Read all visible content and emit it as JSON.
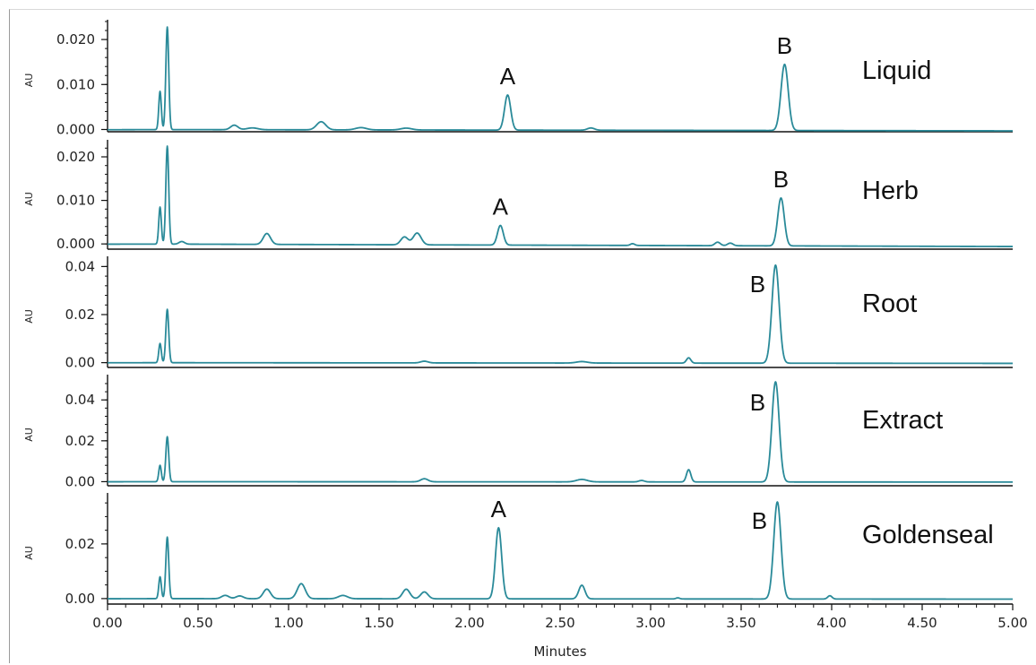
{
  "chart_data": {
    "type": "line",
    "x_axis": {
      "label": "Minutes",
      "range": [
        0,
        5
      ],
      "ticks": [
        "0.00",
        "0.50",
        "1.00",
        "1.50",
        "2.00",
        "2.50",
        "3.00",
        "3.50",
        "4.00",
        "4.50",
        "5.00"
      ]
    },
    "line_color": "#2a8a99",
    "panels": [
      {
        "name": "Liquid",
        "ylabel": "AU",
        "ylim": [
          -0.0005,
          0.024
        ],
        "yticks": [
          0.0,
          0.01,
          0.02
        ],
        "ytick_labels": [
          "0.000",
          "0.010",
          "0.020"
        ],
        "baseline": {
          "start": 0.0,
          "end": -0.0003
        },
        "peaks": [
          {
            "x": 0.29,
            "height": 0.0085,
            "width": 0.007
          },
          {
            "x": 0.33,
            "height": 0.0228,
            "width": 0.008
          },
          {
            "x": 0.7,
            "height": 0.001,
            "width": 0.02
          },
          {
            "x": 0.8,
            "height": 0.0004,
            "width": 0.03
          },
          {
            "x": 1.18,
            "height": 0.0018,
            "width": 0.025
          },
          {
            "x": 1.4,
            "height": 0.0005,
            "width": 0.03
          },
          {
            "x": 1.65,
            "height": 0.0004,
            "width": 0.03
          },
          {
            "x": 2.21,
            "height": 0.0078,
            "width": 0.017
          },
          {
            "x": 2.67,
            "height": 0.0005,
            "width": 0.02
          },
          {
            "x": 3.74,
            "height": 0.0147,
            "width": 0.02
          }
        ],
        "annotations": [
          {
            "text": "A",
            "x": 2.21
          },
          {
            "text": "B",
            "x": 3.74
          }
        ]
      },
      {
        "name": "Herb",
        "ylabel": "AU",
        "ylim": [
          -0.0012,
          0.0235
        ],
        "yticks": [
          0.0,
          0.01,
          0.02
        ],
        "ytick_labels": [
          "0.000",
          "0.010",
          "0.020"
        ],
        "baseline": {
          "start": 0.0,
          "end": -0.0006
        },
        "peaks": [
          {
            "x": 0.29,
            "height": 0.0085,
            "width": 0.007
          },
          {
            "x": 0.33,
            "height": 0.0225,
            "width": 0.008
          },
          {
            "x": 0.41,
            "height": 0.0006,
            "width": 0.015
          },
          {
            "x": 0.88,
            "height": 0.0025,
            "width": 0.02
          },
          {
            "x": 1.64,
            "height": 0.0018,
            "width": 0.02
          },
          {
            "x": 1.71,
            "height": 0.0027,
            "width": 0.022
          },
          {
            "x": 2.17,
            "height": 0.0045,
            "width": 0.016
          },
          {
            "x": 2.9,
            "height": 0.0004,
            "width": 0.012
          },
          {
            "x": 3.37,
            "height": 0.0008,
            "width": 0.015
          },
          {
            "x": 3.44,
            "height": 0.0006,
            "width": 0.015
          },
          {
            "x": 3.72,
            "height": 0.011,
            "width": 0.018
          }
        ],
        "annotations": [
          {
            "text": "A",
            "x": 2.17
          },
          {
            "text": "B",
            "x": 3.72
          }
        ]
      },
      {
        "name": "Root",
        "ylabel": "AU",
        "ylim": [
          -0.002,
          0.0435
        ],
        "yticks": [
          0.0,
          0.02,
          0.04
        ],
        "ytick_labels": [
          "0.00",
          "0.02",
          "0.04"
        ],
        "baseline": {
          "start": 0.0,
          "end": -0.0003
        },
        "peaks": [
          {
            "x": 0.29,
            "height": 0.008,
            "width": 0.007
          },
          {
            "x": 0.33,
            "height": 0.0222,
            "width": 0.008
          },
          {
            "x": 1.75,
            "height": 0.0007,
            "width": 0.02
          },
          {
            "x": 2.62,
            "height": 0.0006,
            "width": 0.03
          },
          {
            "x": 3.21,
            "height": 0.0022,
            "width": 0.012
          },
          {
            "x": 3.69,
            "height": 0.0408,
            "width": 0.02
          }
        ],
        "annotations": [
          {
            "text": "B",
            "x": 3.69
          }
        ]
      },
      {
        "name": "Extract",
        "ylabel": "AU",
        "ylim": [
          -0.002,
          0.0515
        ],
        "yticks": [
          0.0,
          0.02,
          0.04
        ],
        "ytick_labels": [
          "0.00",
          "0.02",
          "0.04"
        ],
        "baseline": {
          "start": 0.0,
          "end": -0.0002
        },
        "peaks": [
          {
            "x": 0.29,
            "height": 0.008,
            "width": 0.007
          },
          {
            "x": 0.33,
            "height": 0.022,
            "width": 0.008
          },
          {
            "x": 1.75,
            "height": 0.0015,
            "width": 0.02
          },
          {
            "x": 2.62,
            "height": 0.0012,
            "width": 0.03
          },
          {
            "x": 2.95,
            "height": 0.0007,
            "width": 0.015
          },
          {
            "x": 3.21,
            "height": 0.006,
            "width": 0.012
          },
          {
            "x": 3.69,
            "height": 0.049,
            "width": 0.02
          }
        ],
        "annotations": [
          {
            "text": "B",
            "x": 3.69
          }
        ]
      },
      {
        "name": "Goldenseal",
        "ylabel": "AU",
        "ylim": [
          -0.002,
          0.038
        ],
        "yticks": [
          0.0,
          0.02
        ],
        "ytick_labels": [
          "0.00",
          "0.02"
        ],
        "baseline": {
          "start": 0.0,
          "end": -0.0002
        },
        "peaks": [
          {
            "x": 0.29,
            "height": 0.008,
            "width": 0.007
          },
          {
            "x": 0.33,
            "height": 0.0225,
            "width": 0.008
          },
          {
            "x": 0.65,
            "height": 0.0012,
            "width": 0.02
          },
          {
            "x": 0.73,
            "height": 0.001,
            "width": 0.02
          },
          {
            "x": 0.88,
            "height": 0.0035,
            "width": 0.02
          },
          {
            "x": 1.07,
            "height": 0.0055,
            "width": 0.022
          },
          {
            "x": 1.3,
            "height": 0.0012,
            "width": 0.025
          },
          {
            "x": 1.65,
            "height": 0.0035,
            "width": 0.02
          },
          {
            "x": 1.75,
            "height": 0.0025,
            "width": 0.02
          },
          {
            "x": 2.16,
            "height": 0.026,
            "width": 0.017
          },
          {
            "x": 2.62,
            "height": 0.005,
            "width": 0.017
          },
          {
            "x": 3.15,
            "height": 0.0004,
            "width": 0.01
          },
          {
            "x": 3.7,
            "height": 0.0355,
            "width": 0.02
          },
          {
            "x": 3.99,
            "height": 0.0012,
            "width": 0.012
          }
        ],
        "annotations": [
          {
            "text": "A",
            "x": 2.16
          },
          {
            "text": "B",
            "x": 3.7
          }
        ]
      }
    ]
  }
}
